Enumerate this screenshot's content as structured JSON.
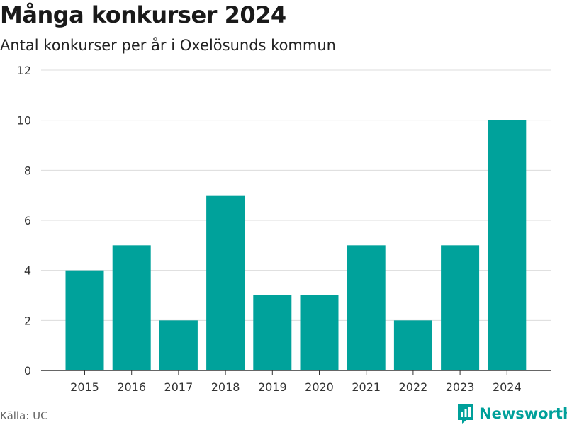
{
  "title": "Många konkurser 2024",
  "subtitle": "Antal konkurser per år i Oxelösunds kommun",
  "source": "Källa: UC",
  "brand": "Newsworthy",
  "colors": {
    "bar": "#00a29b",
    "grid": "#dcdcdc",
    "axis": "#333333",
    "brand": "#00a09a"
  },
  "chart_data": {
    "type": "bar",
    "categories": [
      "2015",
      "2016",
      "2017",
      "2018",
      "2019",
      "2020",
      "2021",
      "2022",
      "2023",
      "2024"
    ],
    "values": [
      4,
      5,
      2,
      7,
      3,
      3,
      5,
      2,
      5,
      10
    ],
    "yticks": [
      0,
      2,
      4,
      6,
      8,
      10,
      12
    ],
    "ylim": [
      0,
      12
    ],
    "grid": true,
    "title": "Många konkurser 2024",
    "subtitle": "Antal konkurser per år i Oxelösunds kommun"
  }
}
